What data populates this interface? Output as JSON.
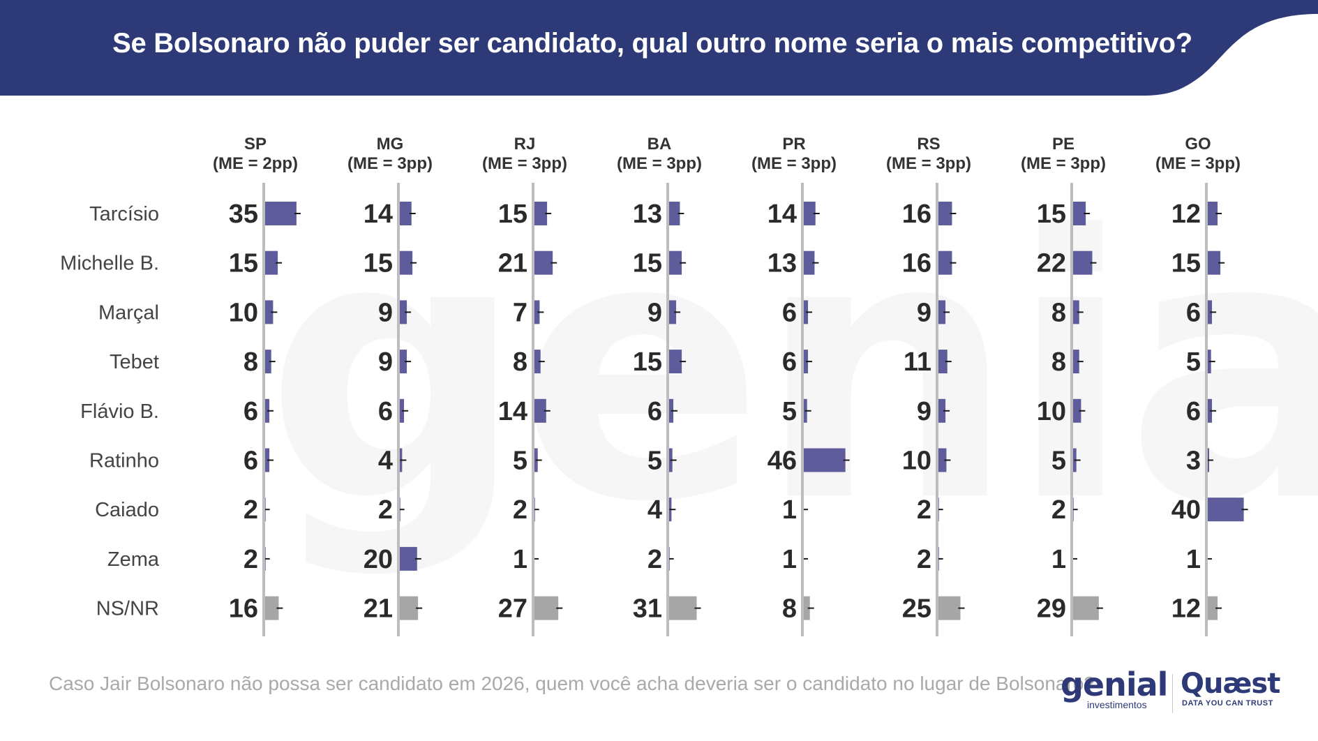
{
  "title": "Se Bolsonaro não puder ser candidato, qual outro nome seria o mais competitivo?",
  "footnote": "Caso Jair Bolsonaro não possa ser candidato em 2026, quem você acha deveria ser o candidato no lugar de Bolsonaro?",
  "logos": {
    "genial_word": "genial",
    "genial_sub": "investimentos",
    "quaest_word": "Quæst",
    "quaest_sub": "DATA YOU CAN TRUST",
    "watermark": "genial"
  },
  "colors": {
    "header": "#2e3a78",
    "bar_candidate": "#5e5c9b",
    "bar_undecided": "#a6a6a6",
    "axis": "#bdbdbd"
  },
  "chart_data": {
    "type": "bar",
    "orientation": "horizontal",
    "xlim": [
      0,
      50
    ],
    "categories": [
      "Tarcísio",
      "Michelle B.",
      "Marçal",
      "Tebet",
      "Flávio B.",
      "Ratinho",
      "Caiado",
      "Zema",
      "NS/NR"
    ],
    "series": [
      {
        "name": "SP",
        "margin": "(ME = 2pp)",
        "values": [
          35,
          15,
          10,
          8,
          6,
          6,
          2,
          2,
          16
        ]
      },
      {
        "name": "MG",
        "margin": "(ME = 3pp)",
        "values": [
          14,
          15,
          9,
          9,
          6,
          4,
          2,
          20,
          21
        ]
      },
      {
        "name": "RJ",
        "margin": "(ME = 3pp)",
        "values": [
          15,
          21,
          7,
          8,
          14,
          5,
          2,
          1,
          27
        ]
      },
      {
        "name": "BA",
        "margin": "(ME = 3pp)",
        "values": [
          13,
          15,
          9,
          15,
          6,
          5,
          4,
          2,
          31
        ]
      },
      {
        "name": "PR",
        "margin": "(ME = 3pp)",
        "values": [
          14,
          13,
          6,
          6,
          5,
          46,
          1,
          1,
          8
        ]
      },
      {
        "name": "RS",
        "margin": "(ME = 3pp)",
        "values": [
          16,
          16,
          9,
          11,
          9,
          10,
          2,
          2,
          25
        ]
      },
      {
        "name": "PE",
        "margin": "(ME = 3pp)",
        "values": [
          15,
          22,
          8,
          8,
          10,
          5,
          2,
          1,
          29
        ]
      },
      {
        "name": "GO",
        "margin": "(ME = 3pp)",
        "values": [
          12,
          15,
          6,
          5,
          6,
          3,
          40,
          1,
          12
        ]
      }
    ]
  }
}
